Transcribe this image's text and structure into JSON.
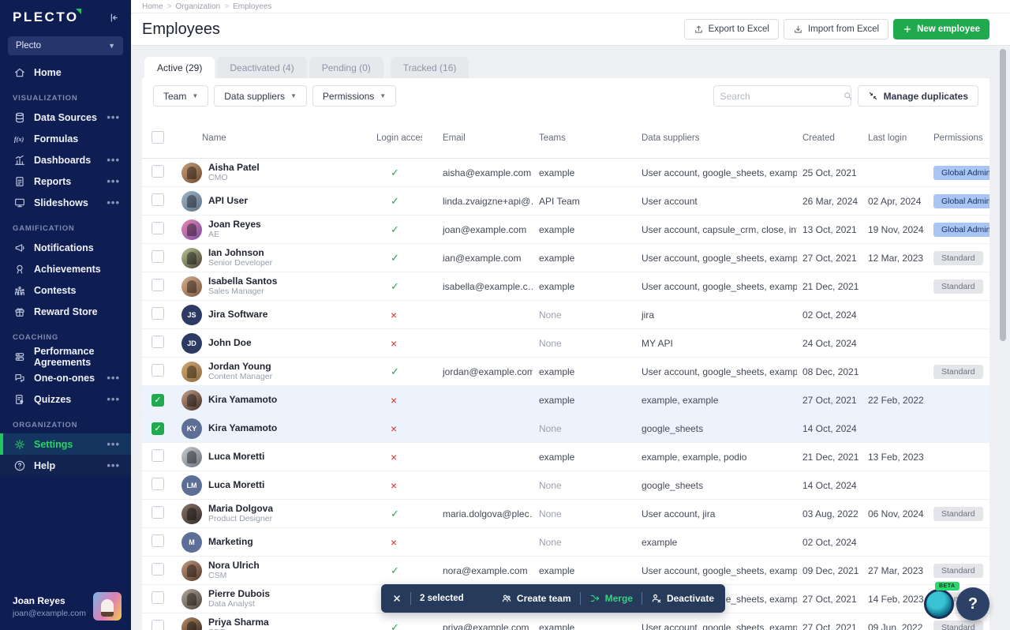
{
  "sidebar": {
    "logo": "PLECTO",
    "workspace": "Plecto",
    "sections": [
      {
        "label": "",
        "items": [
          {
            "label": "Home",
            "icon": "home"
          }
        ]
      },
      {
        "label": "VISUALIZATION",
        "items": [
          {
            "label": "Data Sources",
            "icon": "data-sources",
            "more": true
          },
          {
            "label": "Formulas",
            "icon": "formulas"
          },
          {
            "label": "Dashboards",
            "icon": "dashboards",
            "more": true
          },
          {
            "label": "Reports",
            "icon": "reports",
            "more": true
          },
          {
            "label": "Slideshows",
            "icon": "slideshows",
            "more": true
          }
        ]
      },
      {
        "label": "GAMIFICATION",
        "items": [
          {
            "label": "Notifications",
            "icon": "notifications"
          },
          {
            "label": "Achievements",
            "icon": "achievements"
          },
          {
            "label": "Contests",
            "icon": "contests"
          },
          {
            "label": "Reward Store",
            "icon": "reward-store"
          }
        ]
      },
      {
        "label": "COACHING",
        "items": [
          {
            "label": "Performance Agreements",
            "icon": "performance-agreements"
          },
          {
            "label": "One-on-ones",
            "icon": "one-on-ones",
            "more": true
          },
          {
            "label": "Quizzes",
            "icon": "quizzes",
            "more": true
          }
        ]
      },
      {
        "label": "ORGANIZATION",
        "items": [
          {
            "label": "Settings",
            "icon": "settings",
            "more": true,
            "active": true
          },
          {
            "label": "Help",
            "icon": "help",
            "more": true,
            "subtle": true
          }
        ]
      }
    ],
    "user": {
      "name": "Joan Reyes",
      "email": "joan@example.com"
    }
  },
  "breadcrumb": [
    "Home",
    "Organization",
    "Employees"
  ],
  "header": {
    "title": "Employees",
    "export_label": "Export to Excel",
    "import_label": "Import from Excel",
    "new_employee_label": "New employee"
  },
  "tabs": [
    {
      "label": "Active (29)",
      "active": true
    },
    {
      "label": "Deactivated (4)"
    },
    {
      "label": "Pending (0)"
    },
    {
      "label": "Tracked (16)",
      "gapped": true
    }
  ],
  "filters": {
    "team": "Team",
    "data_suppliers": "Data suppliers",
    "permissions": "Permissions",
    "search_placeholder": "Search",
    "manage_duplicates": "Manage duplicates"
  },
  "table": {
    "columns": [
      "Name",
      "Login access",
      "Email",
      "Teams",
      "Data suppliers",
      "Created",
      "Last login",
      "Permissions"
    ],
    "rows": [
      {
        "name": "Aisha Patel",
        "subtitle": "CMO",
        "avatar": {
          "type": "photo",
          "colors": [
            "#caa07a",
            "#6b4a32"
          ]
        },
        "login": "yes",
        "email": "aisha@example.com",
        "teams": "example",
        "suppliers": "User account, google_sheets, example, ex…",
        "created": "25 Oct, 2021",
        "last_login": "",
        "permission": "Global Admin",
        "selected": false
      },
      {
        "name": "API User",
        "subtitle": "",
        "avatar": {
          "type": "photo",
          "colors": [
            "#9fb4c7",
            "#5b7186"
          ]
        },
        "login": "yes",
        "email": "linda.zvaigzne+api@…",
        "teams": "API Team",
        "suppliers": "User account",
        "created": "26 Mar, 2024",
        "last_login": "02 Apr, 2024",
        "permission": "Global Admin",
        "selected": false
      },
      {
        "name": "Joan Reyes",
        "subtitle": "AE",
        "avatar": {
          "type": "photo",
          "colors": [
            "#e98ab4",
            "#7a4a9e"
          ]
        },
        "login": "yes",
        "email": "joan@example.com",
        "teams": "example",
        "suppliers": "User account, capsule_crm, close, interco…",
        "created": "13 Oct, 2021",
        "last_login": "19 Nov, 2024",
        "permission": "Global Admin",
        "selected": false
      },
      {
        "name": "Ian Johnson",
        "subtitle": "Senior Developer",
        "avatar": {
          "type": "photo",
          "colors": [
            "#b6c79a",
            "#4a3b2e"
          ]
        },
        "login": "yes",
        "email": "ian@example.com",
        "teams": "example",
        "suppliers": "User account, google_sheets, example, ex…",
        "created": "27 Oct, 2021",
        "last_login": "12 Mar, 2023",
        "permission": "Standard",
        "selected": false
      },
      {
        "name": "Isabella Santos",
        "subtitle": "Sales Manager",
        "avatar": {
          "type": "photo",
          "colors": [
            "#d9b18f",
            "#7a5640"
          ]
        },
        "login": "yes",
        "email": "isabella@example.c…",
        "teams": "example",
        "suppliers": "User account, google_sheets, example, ex…",
        "created": "21 Dec, 2021",
        "last_login": "",
        "permission": "Standard",
        "selected": false
      },
      {
        "name": "Jira Software",
        "subtitle": "",
        "avatar": {
          "type": "initials",
          "initials": "JS",
          "color": "#2c3a64"
        },
        "login": "no",
        "email": "",
        "teams": "None",
        "suppliers": "jira",
        "created": "02 Oct, 2024",
        "last_login": "",
        "permission": "",
        "selected": false
      },
      {
        "name": "John Doe",
        "subtitle": "",
        "avatar": {
          "type": "initials",
          "initials": "JD",
          "color": "#2c3a64"
        },
        "login": "no",
        "email": "",
        "teams": "None",
        "suppliers": "MY API",
        "created": "24 Oct, 2024",
        "last_login": "",
        "permission": "",
        "selected": false
      },
      {
        "name": "Jordan Young",
        "subtitle": "Content Manager",
        "avatar": {
          "type": "photo",
          "colors": [
            "#d3a873",
            "#8a6a3e"
          ]
        },
        "login": "yes",
        "email": "jordan@example.com",
        "teams": "example",
        "suppliers": "User account, google_sheets, example, ex…",
        "created": "08 Dec, 2021",
        "last_login": "",
        "permission": "Standard",
        "selected": false
      },
      {
        "name": "Kira Yamamoto",
        "subtitle": "",
        "avatar": {
          "type": "photo",
          "colors": [
            "#caa287",
            "#3e2d26"
          ]
        },
        "login": "no",
        "email": "",
        "teams": "example",
        "suppliers": "example, example",
        "created": "27 Oct, 2021",
        "last_login": "22 Feb, 2022",
        "permission": "",
        "selected": true
      },
      {
        "name": "Kira Yamamoto",
        "subtitle": "",
        "avatar": {
          "type": "initials",
          "initials": "KY",
          "color": "#5d6f96"
        },
        "login": "no",
        "email": "",
        "teams": "None",
        "suppliers": "google_sheets",
        "created": "14 Oct, 2024",
        "last_login": "",
        "permission": "",
        "selected": true
      },
      {
        "name": "Luca Moretti",
        "subtitle": "",
        "avatar": {
          "type": "photo",
          "colors": [
            "#c9cdd4",
            "#6b6f78"
          ]
        },
        "login": "no",
        "email": "",
        "teams": "example",
        "suppliers": "example, example, podio",
        "created": "21 Dec, 2021",
        "last_login": "13 Feb, 2023",
        "permission": "",
        "selected": false
      },
      {
        "name": "Luca Moretti",
        "subtitle": "",
        "avatar": {
          "type": "initials",
          "initials": "LM",
          "color": "#5d6f96"
        },
        "login": "no",
        "email": "",
        "teams": "None",
        "suppliers": "google_sheets",
        "created": "14 Oct, 2024",
        "last_login": "",
        "permission": "",
        "selected": false
      },
      {
        "name": "Maria Dolgova",
        "subtitle": "Product Designer",
        "avatar": {
          "type": "photo",
          "colors": [
            "#8a7668",
            "#332a28"
          ]
        },
        "login": "yes",
        "email": "maria.dolgova@plec…",
        "teams": "None",
        "suppliers": "User account, jira",
        "created": "03 Aug, 2022",
        "last_login": "06 Nov, 2024",
        "permission": "Standard",
        "selected": false
      },
      {
        "name": "Marketing",
        "subtitle": "",
        "avatar": {
          "type": "initials",
          "initials": "M",
          "color": "#5d6f96"
        },
        "login": "no",
        "email": "",
        "teams": "None",
        "suppliers": "example",
        "created": "02 Oct, 2024",
        "last_login": "",
        "permission": "",
        "selected": false
      },
      {
        "name": "Nora Ulrich",
        "subtitle": "CSM",
        "avatar": {
          "type": "photo",
          "colors": [
            "#c59a7d",
            "#52382c"
          ]
        },
        "login": "yes",
        "email": "nora@example.com",
        "teams": "example",
        "suppliers": "User account, google_sheets, example, ex…",
        "created": "09 Dec, 2021",
        "last_login": "27 Mar, 2023",
        "permission": "Standard",
        "selected": false
      },
      {
        "name": "Pierre Dubois",
        "subtitle": "Data Analyst",
        "avatar": {
          "type": "photo",
          "colors": [
            "#b0a79b",
            "#4e4238"
          ]
        },
        "login": "",
        "email": "",
        "teams": "",
        "suppliers": "User account, google_sheets, example, ex…",
        "created": "27 Oct, 2021",
        "last_login": "14 Feb, 2023",
        "permission": "Standard",
        "selected": false
      },
      {
        "name": "Priya Sharma",
        "subtitle": "SDR",
        "avatar": {
          "type": "photo",
          "colors": [
            "#bc8f66",
            "#2f2420"
          ]
        },
        "login": "yes",
        "email": "priya@example.com",
        "teams": "example",
        "suppliers": "User account, google_sheets, example",
        "created": "27 Oct, 2021",
        "last_login": "09 Jun, 2022",
        "permission": "Standard",
        "selected": false
      }
    ]
  },
  "action_bar": {
    "selected_label": "2 selected",
    "create_team": "Create team",
    "merge": "Merge",
    "deactivate": "Deactivate"
  },
  "floating": {
    "beta": "BETA",
    "help": "?"
  },
  "colors": {
    "accent_green": "#21a94e",
    "sidebar_bg": "#0f1e52",
    "sidebar_active_green": "#2ad268",
    "badge_global_bg": "#a9c6f2",
    "badge_standard_bg": "#e4e5e9",
    "check_green": "#1fa94f",
    "cross_red": "#e02b2b",
    "selected_row_bg": "#edf3fc",
    "action_bar_bg": "#263a5c",
    "merge_green": "#3bd07f"
  }
}
